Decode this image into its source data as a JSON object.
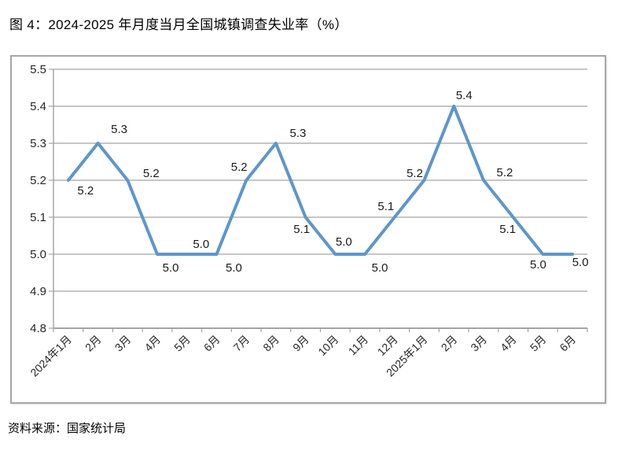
{
  "figure": {
    "title": "图 4：2024-2025 年月度当月全国城镇调查失业率（%）",
    "source_note": "资料来源：国家统计局"
  },
  "chart_data": {
    "type": "line",
    "title": "图 4：2024-2025 年月度当月全国城镇调查失业率（%）",
    "categories": [
      "2024年1月",
      "2月",
      "3月",
      "4月",
      "5月",
      "6月",
      "7月",
      "8月",
      "9月",
      "10月",
      "11月",
      "12月",
      "2025年1月",
      "2月",
      "3月",
      "4月",
      "5月",
      "6月"
    ],
    "values": [
      5.2,
      5.3,
      5.2,
      5.0,
      5.0,
      5.0,
      5.2,
      5.3,
      5.1,
      5.0,
      5.0,
      5.1,
      5.2,
      5.4,
      5.2,
      5.1,
      5.0,
      5.0
    ],
    "data_labels": [
      "5.2",
      "5.3",
      "5.2",
      "5.0",
      "5.0",
      "5.0",
      "5.2",
      "5.3",
      "5.1",
      "5.0",
      "5.0",
      "5.1",
      "5.2",
      "5.4",
      "5.2",
      "5.1",
      "5.0",
      "5.0"
    ],
    "xlabel": "",
    "ylabel": "",
    "ylim": [
      4.8,
      5.5
    ],
    "ytick_step": 0.1,
    "yticks": [
      "5.5",
      "5.4",
      "5.3",
      "5.2",
      "5.1",
      "5.0",
      "4.9",
      "4.8"
    ],
    "grid": true,
    "legend": false,
    "colors": {
      "line": "#5D96CC",
      "grid": "#a3a3a3",
      "axis": "#a3a3a3",
      "data_label_text": "#1a1a1a",
      "tick_label_text": "#262626"
    }
  }
}
